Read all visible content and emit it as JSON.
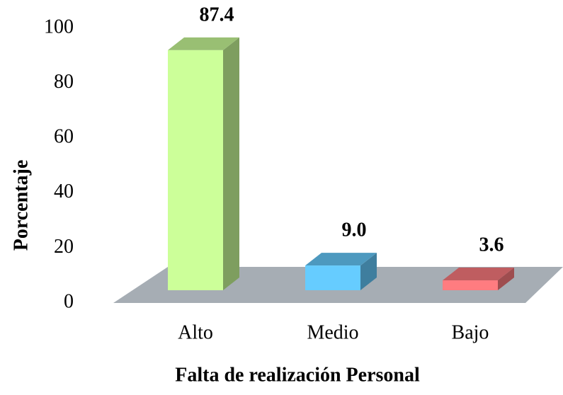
{
  "chart_data": {
    "type": "bar3d",
    "categories": [
      "Alto",
      "Medio",
      "Bajo"
    ],
    "values": [
      87.4,
      9.0,
      3.6
    ],
    "value_labels": [
      "87.4",
      "9.0",
      "3.6"
    ],
    "colors": [
      "#ccff99",
      "#66ccff",
      "#ff7c80"
    ],
    "ylabel": "Porcentaje",
    "xlabel": "Falta de realización Personal",
    "ylim": [
      0,
      100
    ],
    "yticks": [
      0,
      20,
      40,
      60,
      80,
      100
    ]
  }
}
